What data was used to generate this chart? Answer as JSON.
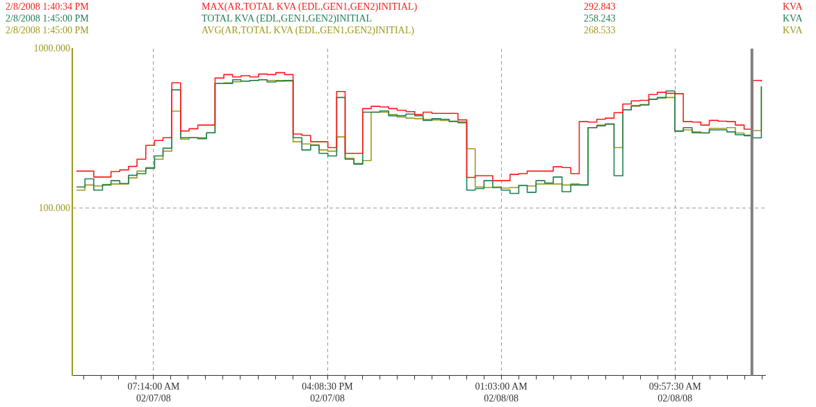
{
  "chart_data": {
    "type": "step",
    "legend": "top",
    "grid": true,
    "log": "y",
    "marker": "none",
    "line_style": "solid",
    "x": [
      "2008-02-07T03:17",
      "2008-02-07T03:43",
      "2008-02-07T04:10",
      "2008-02-07T04:37",
      "2008-02-07T05:03",
      "2008-02-07T05:30",
      "2008-02-07T05:57",
      "2008-02-07T06:23",
      "2008-02-07T06:50",
      "2008-02-07T07:17",
      "2008-02-07T07:43",
      "2008-02-07T08:10",
      "2008-02-07T08:37",
      "2008-02-07T09:03",
      "2008-02-07T09:30",
      "2008-02-07T09:57",
      "2008-02-07T10:23",
      "2008-02-07T10:50",
      "2008-02-07T11:17",
      "2008-02-07T11:43",
      "2008-02-07T12:10",
      "2008-02-07T12:37",
      "2008-02-07T13:03",
      "2008-02-07T13:30",
      "2008-02-07T13:57",
      "2008-02-07T14:23",
      "2008-02-07T14:50",
      "2008-02-07T15:17",
      "2008-02-07T15:43",
      "2008-02-07T16:10",
      "2008-02-07T16:37",
      "2008-02-07T17:03",
      "2008-02-07T17:30",
      "2008-02-07T17:57",
      "2008-02-07T18:23",
      "2008-02-07T18:50",
      "2008-02-07T19:17",
      "2008-02-07T19:43",
      "2008-02-07T20:10",
      "2008-02-07T20:37",
      "2008-02-07T21:03",
      "2008-02-07T21:30",
      "2008-02-07T21:57",
      "2008-02-07T22:23",
      "2008-02-07T22:50",
      "2008-02-07T23:17",
      "2008-02-07T23:43",
      "2008-02-08T00:10",
      "2008-02-08T00:37",
      "2008-02-08T01:03",
      "2008-02-08T01:30",
      "2008-02-08T01:57",
      "2008-02-08T02:23",
      "2008-02-08T02:50",
      "2008-02-08T03:17",
      "2008-02-08T03:43",
      "2008-02-08T04:10",
      "2008-02-08T04:37",
      "2008-02-08T05:03",
      "2008-02-08T05:30",
      "2008-02-08T05:57",
      "2008-02-08T06:23",
      "2008-02-08T06:50",
      "2008-02-08T07:17",
      "2008-02-08T07:43",
      "2008-02-08T08:10",
      "2008-02-08T08:37",
      "2008-02-08T09:03",
      "2008-02-08T09:30",
      "2008-02-08T09:57",
      "2008-02-08T10:23",
      "2008-02-08T10:50",
      "2008-02-08T11:17",
      "2008-02-08T11:43",
      "2008-02-08T12:10",
      "2008-02-08T12:37",
      "2008-02-08T13:03",
      "2008-02-08T13:30",
      "2008-02-08T13:57",
      "2008-02-08T14:23"
    ],
    "xlim": [
      "2008-02-07T03:04",
      "2008-02-08T14:35"
    ],
    "xticks": [
      {
        "value": "2008-02-07T03:40:12",
        "label": null
      },
      {
        "value": "2008-02-07T04:33:39",
        "label": null
      },
      {
        "value": "2008-02-07T05:27:06",
        "label": null
      },
      {
        "value": "2008-02-07T06:20:33",
        "label": null
      },
      {
        "value": "2008-02-07T07:14:00",
        "label": "07:14:00 AM\n02/07/08"
      },
      {
        "value": "2008-02-07T08:07:27",
        "label": null
      },
      {
        "value": "2008-02-07T09:00:54",
        "label": null
      },
      {
        "value": "2008-02-07T09:54:21",
        "label": null
      },
      {
        "value": "2008-02-07T10:47:48",
        "label": null
      },
      {
        "value": "2008-02-07T11:41:15",
        "label": null
      },
      {
        "value": "2008-02-07T12:34:42",
        "label": null
      },
      {
        "value": "2008-02-07T13:28:09",
        "label": null
      },
      {
        "value": "2008-02-07T14:21:36",
        "label": null
      },
      {
        "value": "2008-02-07T15:15:03",
        "label": null
      },
      {
        "value": "2008-02-07T16:08:30",
        "label": "04:08:30 PM\n02/07/08"
      },
      {
        "value": "2008-02-07T17:01:57",
        "label": null
      },
      {
        "value": "2008-02-07T17:55:24",
        "label": null
      },
      {
        "value": "2008-02-07T18:48:51",
        "label": null
      },
      {
        "value": "2008-02-07T19:42:18",
        "label": null
      },
      {
        "value": "2008-02-07T20:35:45",
        "label": null
      },
      {
        "value": "2008-02-07T21:29:12",
        "label": null
      },
      {
        "value": "2008-02-07T22:22:39",
        "label": null
      },
      {
        "value": "2008-02-07T23:16:06",
        "label": null
      },
      {
        "value": "2008-02-08T00:09:33",
        "label": null
      },
      {
        "value": "2008-02-08T01:03:00",
        "label": "01:03:00 AM\n02/08/08"
      },
      {
        "value": "2008-02-08T01:56:27",
        "label": null
      },
      {
        "value": "2008-02-08T02:49:54",
        "label": null
      },
      {
        "value": "2008-02-08T03:43:21",
        "label": null
      },
      {
        "value": "2008-02-08T04:36:48",
        "label": null
      },
      {
        "value": "2008-02-08T05:30:15",
        "label": null
      },
      {
        "value": "2008-02-08T06:23:42",
        "label": null
      },
      {
        "value": "2008-02-08T07:17:09",
        "label": null
      },
      {
        "value": "2008-02-08T08:10:36",
        "label": null
      },
      {
        "value": "2008-02-08T09:04:03",
        "label": null
      },
      {
        "value": "2008-02-08T09:57:30",
        "label": "09:57:30 AM\n02/08/08"
      },
      {
        "value": "2008-02-08T10:50:57",
        "label": null
      },
      {
        "value": "2008-02-08T11:44:24",
        "label": null
      },
      {
        "value": "2008-02-08T12:37:51",
        "label": null
      },
      {
        "value": "2008-02-08T13:31:18",
        "label": null
      },
      {
        "value": "2008-02-08T14:24:45",
        "label": null
      }
    ],
    "ylim": [
      9,
      1000
    ],
    "yticks": [
      {
        "value": 100,
        "label": "100.000"
      },
      {
        "value": 1000,
        "label": "1000.000"
      }
    ],
    "ref_lines": [
      {
        "axis": "x",
        "value": "2008-02-08T13:54",
        "color": "#808080"
      }
    ],
    "annotations": [
      "2/8/2008 1:40:34 PM",
      "292.843",
      "KVA",
      "2/8/2008 1:45:00 PM",
      "258.243",
      "KVA",
      "2/8/2008 1:45:00 PM",
      "268.533",
      "KVA"
    ],
    "series": [
      {
        "name": "MAX(AR,TOTAL KVA (EDL,GEN1,GEN2)INITIAL)",
        "color": "#ff1a1a",
        "values": [
          171,
          171,
          157,
          157,
          170,
          174,
          183,
          203,
          248,
          266,
          277,
          611,
          305,
          315,
          332,
          332,
          654,
          688,
          665,
          677,
          665,
          693,
          688,
          707,
          688,
          292,
          286,
          261,
          261,
          240,
          539,
          221,
          221,
          421,
          435,
          431,
          421,
          411,
          403,
          387,
          400,
          393,
          393,
          393,
          358,
          156,
          160,
          160,
          149,
          149,
          163,
          165,
          171,
          171,
          171,
          182,
          180,
          165,
          349,
          347,
          361,
          367,
          397,
          450,
          471,
          474,
          516,
          533,
          525,
          522,
          349,
          347,
          332,
          355,
          351,
          349,
          332,
          313,
          632,
          621
        ]
      },
      {
        "name": "TOTAL KVA (EDL,GEN1,GEN2)INITIAL",
        "color": "#1f7f55",
        "values": [
          136,
          153,
          130,
          140,
          149,
          143,
          161,
          165,
          178,
          213,
          238,
          552,
          277,
          277,
          273,
          297,
          605,
          605,
          639,
          626,
          632,
          639,
          618,
          626,
          632,
          277,
          232,
          248,
          221,
          213,
          494,
          203,
          189,
          400,
          400,
          407,
          380,
          380,
          389,
          380,
          355,
          364,
          361,
          351,
          347,
          130,
          133,
          149,
          135,
          130,
          124,
          139,
          126,
          149,
          144,
          157,
          127,
          140,
          140,
          320,
          328,
          337,
          160,
          413,
          440,
          443,
          482,
          494,
          543,
          305,
          320,
          297,
          296,
          310,
          310,
          301,
          289,
          285,
          276,
          581
        ]
      },
      {
        "name": "AVG(AR,TOTAL KVA (EDL,GEN1,GEN2)INITIAL)",
        "color": "#9c9a1e",
        "values": [
          130,
          140,
          138,
          141,
          142,
          142,
          155,
          171,
          180,
          203,
          228,
          406,
          271,
          277,
          277,
          297,
          605,
          611,
          621,
          626,
          632,
          639,
          632,
          632,
          626,
          261,
          253,
          250,
          232,
          228,
          280,
          206,
          191,
          199,
          400,
          400,
          387,
          373,
          367,
          364,
          361,
          358,
          355,
          349,
          343,
          236,
          136,
          135,
          136,
          134,
          135,
          139,
          138,
          142,
          142,
          142,
          140,
          142,
          140,
          320,
          332,
          337,
          240,
          413,
          436,
          446,
          482,
          490,
          494,
          303,
          310,
          301,
          297,
          317,
          317,
          320,
          296,
          287,
          307,
          578
        ]
      }
    ]
  }
}
